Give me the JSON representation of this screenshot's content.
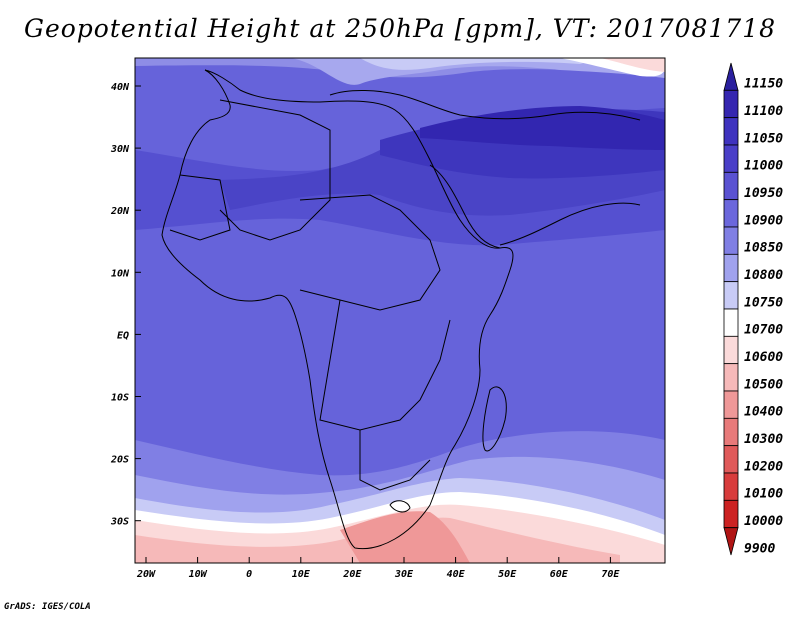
{
  "title": "Geopotential Height at 250hPa [gpm], VT: 2017081718",
  "credit": "GrADS: IGES/COLA",
  "map": {
    "lat_labels": [
      "40N",
      "30N",
      "20N",
      "10N",
      "EQ",
      "10S",
      "20S",
      "30S"
    ],
    "lon_labels": [
      "20W",
      "10W",
      "0",
      "10E",
      "20E",
      "30E",
      "40E",
      "50E",
      "60E",
      "70E"
    ]
  },
  "colorbar": {
    "levels": [
      "11150",
      "11100",
      "11050",
      "11000",
      "10950",
      "10900",
      "10850",
      "10800",
      "10750",
      "10700",
      "10600",
      "10500",
      "10400",
      "10300",
      "10200",
      "10100",
      "10000",
      "9900"
    ],
    "colors": [
      "#2a1f9e",
      "#3526b0",
      "#3f33bf",
      "#4a3fc8",
      "#5a52d2",
      "#6b67dc",
      "#807fe4",
      "#a0a2ee",
      "#c8cbf6",
      "#ffffff",
      "#fbdada",
      "#f6b9b9",
      "#ef9898",
      "#e87a7a",
      "#e05a5a",
      "#d83c3c",
      "#cc2222",
      "#b01414"
    ]
  }
}
